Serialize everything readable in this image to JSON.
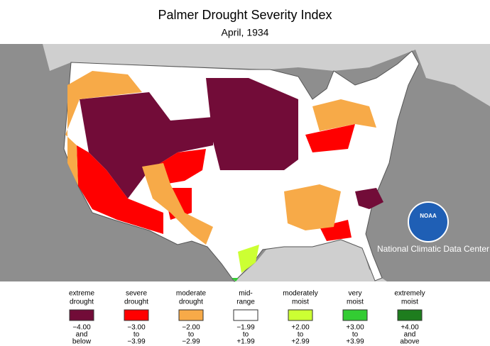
{
  "header": {
    "title": "Palmer Drought Severity Index",
    "subtitle": "April, 1934"
  },
  "credit": {
    "logo": "NOAA",
    "text": "National Climatic Data Center"
  },
  "legend": {
    "items": [
      {
        "label": [
          "extreme",
          "drought"
        ],
        "color": "#720c38",
        "range": [
          "−4.00",
          "and",
          "below"
        ]
      },
      {
        "label": [
          "severe",
          "drought"
        ],
        "color": "#ff0000",
        "range": [
          "−3.00",
          "to",
          "−3.99"
        ]
      },
      {
        "label": [
          "moderate",
          "drought"
        ],
        "color": "#f7aa48",
        "range": [
          "−2.00",
          "to",
          "−2.99"
        ]
      },
      {
        "label": [
          "mid-",
          "range"
        ],
        "color": "#ffffff",
        "range": [
          "−1.99",
          "to",
          "+1.99"
        ]
      },
      {
        "label": [
          "moderately",
          "moist"
        ],
        "color": "#ccff33",
        "range": [
          "+2.00",
          "to",
          "+2.99"
        ]
      },
      {
        "label": [
          "very",
          "moist"
        ],
        "color": "#33cc33",
        "range": [
          "+3.00",
          "to",
          "+3.99"
        ]
      },
      {
        "label": [
          "extremely",
          "moist"
        ],
        "color": "#1e7d1e",
        "range": [
          "+4.00",
          "and",
          "above"
        ]
      }
    ]
  }
}
